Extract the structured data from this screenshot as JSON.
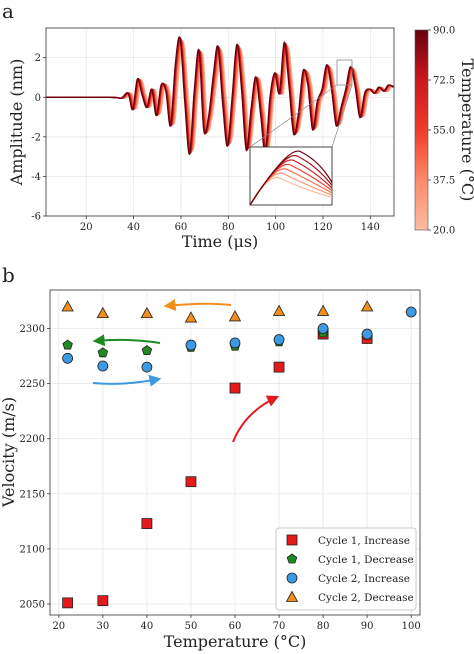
{
  "figure": {
    "panel_a_label": "a",
    "panel_b_label": "b"
  },
  "chart_data": [
    {
      "type": "line",
      "panel": "a",
      "xlabel": "Time (μs)",
      "ylabel": "Amplitude (nm)",
      "xlim": [
        3,
        150
      ],
      "ylim": [
        -6,
        3.5
      ],
      "xticks": [
        20,
        40,
        60,
        80,
        100,
        120,
        140
      ],
      "yticks": [
        -6,
        -4,
        -2,
        0,
        2
      ],
      "grid": true,
      "colorbar": {
        "label": "Temperature (°C)",
        "ticks": [
          20.0,
          37.5,
          55.0,
          72.5,
          90.0
        ],
        "colors": [
          "#fcbba1",
          "#fb6a4a",
          "#ef3b2c",
          "#cb181d",
          "#67000d"
        ]
      },
      "inset": {
        "shows": "zoom of waveform peak near 128 μs"
      },
      "series_note": "waveforms recorded at temperatures from 20 to 90 °C (colormap)",
      "envelope": [
        [
          3,
          0
        ],
        [
          30,
          0
        ],
        [
          35,
          -0.05
        ],
        [
          38,
          0.2
        ],
        [
          40,
          -0.6
        ],
        [
          42,
          0.9
        ],
        [
          44,
          0.1
        ],
        [
          46,
          -0.5
        ],
        [
          48,
          0.4
        ],
        [
          50,
          -0.9
        ],
        [
          52,
          0.6
        ],
        [
          54,
          0.3
        ],
        [
          56,
          -1.4
        ],
        [
          58,
          1.6
        ],
        [
          60,
          2.9
        ],
        [
          62,
          -0.2
        ],
        [
          64,
          -2.8
        ],
        [
          66,
          0.3
        ],
        [
          68,
          2.3
        ],
        [
          70,
          -1.6
        ],
        [
          72,
          -1.0
        ],
        [
          74,
          1.0
        ],
        [
          76,
          2.5
        ],
        [
          78,
          -0.3
        ],
        [
          80,
          -2.4
        ],
        [
          82,
          0.0
        ],
        [
          84,
          2.6
        ],
        [
          86,
          0.4
        ],
        [
          88,
          -2.6
        ],
        [
          90,
          -0.6
        ],
        [
          92,
          1.0
        ],
        [
          94,
          -0.8
        ],
        [
          96,
          -2.7
        ],
        [
          98,
          0.0
        ],
        [
          100,
          1.2
        ],
        [
          102,
          0.2
        ],
        [
          104,
          2.7
        ],
        [
          106,
          0.6
        ],
        [
          108,
          -1.8
        ],
        [
          110,
          -0.8
        ],
        [
          112,
          1.3
        ],
        [
          114,
          0.6
        ],
        [
          116,
          -1.6
        ],
        [
          118,
          -0.2
        ],
        [
          120,
          0.4
        ],
        [
          122,
          1.6
        ],
        [
          124,
          0.4
        ],
        [
          126,
          -1.4
        ],
        [
          128,
          -0.5
        ],
        [
          130,
          0.4
        ],
        [
          132,
          1.5
        ],
        [
          134,
          0.5
        ],
        [
          136,
          -1.0
        ],
        [
          138,
          0.2
        ],
        [
          140,
          0.4
        ],
        [
          142,
          0.2
        ],
        [
          144,
          0.5
        ],
        [
          146,
          0.3
        ],
        [
          148,
          0.6
        ],
        [
          150,
          0.5
        ]
      ]
    },
    {
      "type": "scatter",
      "panel": "b",
      "xlabel": "Temperature (°C)",
      "ylabel": "Velocity (m/s)",
      "xlim": [
        18,
        102
      ],
      "ylim": [
        2040,
        2335
      ],
      "xticks": [
        20,
        30,
        40,
        50,
        60,
        70,
        80,
        90,
        100
      ],
      "yticks": [
        2050,
        2100,
        2150,
        2200,
        2250,
        2300
      ],
      "grid": true,
      "legend_position": "bottom-right",
      "series": [
        {
          "name": "Cycle 1, Increase",
          "marker": "square",
          "color": "#e41a1c",
          "points": [
            [
              22,
              2051
            ],
            [
              30,
              2053
            ],
            [
              40,
              2123
            ],
            [
              50,
              2161
            ],
            [
              60,
              2246
            ],
            [
              70,
              2265
            ],
            [
              80,
              2295
            ],
            [
              90,
              2291
            ]
          ]
        },
        {
          "name": "Cycle 1, Decrease",
          "marker": "pentagon",
          "color": "#1f8a1f",
          "points": [
            [
              22,
              2285
            ],
            [
              30,
              2278
            ],
            [
              40,
              2280
            ],
            [
              50,
              2283
            ],
            [
              60,
              2284
            ],
            [
              70,
              2288
            ],
            [
              80,
              2296
            ],
            [
              90,
              2294
            ]
          ]
        },
        {
          "name": "Cycle 2, Increase",
          "marker": "circle",
          "color": "#3b9ae1",
          "points": [
            [
              22,
              2273
            ],
            [
              30,
              2266
            ],
            [
              40,
              2265
            ],
            [
              50,
              2285
            ],
            [
              60,
              2287
            ],
            [
              70,
              2290
            ],
            [
              80,
              2300
            ],
            [
              90,
              2295
            ],
            [
              100,
              2315
            ]
          ]
        },
        {
          "name": "Cycle 2, Decrease",
          "marker": "triangle",
          "color": "#f28e1c",
          "points": [
            [
              22,
              2320
            ],
            [
              30,
              2314
            ],
            [
              40,
              2314
            ],
            [
              50,
              2310
            ],
            [
              60,
              2311
            ],
            [
              70,
              2316
            ],
            [
              80,
              2316
            ],
            [
              90,
              2320
            ]
          ]
        }
      ],
      "arrows": [
        {
          "color": "#f28e1c",
          "direction": "left"
        },
        {
          "color": "#1f8a1f",
          "direction": "left"
        },
        {
          "color": "#3b9ae1",
          "direction": "right"
        },
        {
          "color": "#e41a1c",
          "direction": "up-right"
        }
      ]
    }
  ]
}
